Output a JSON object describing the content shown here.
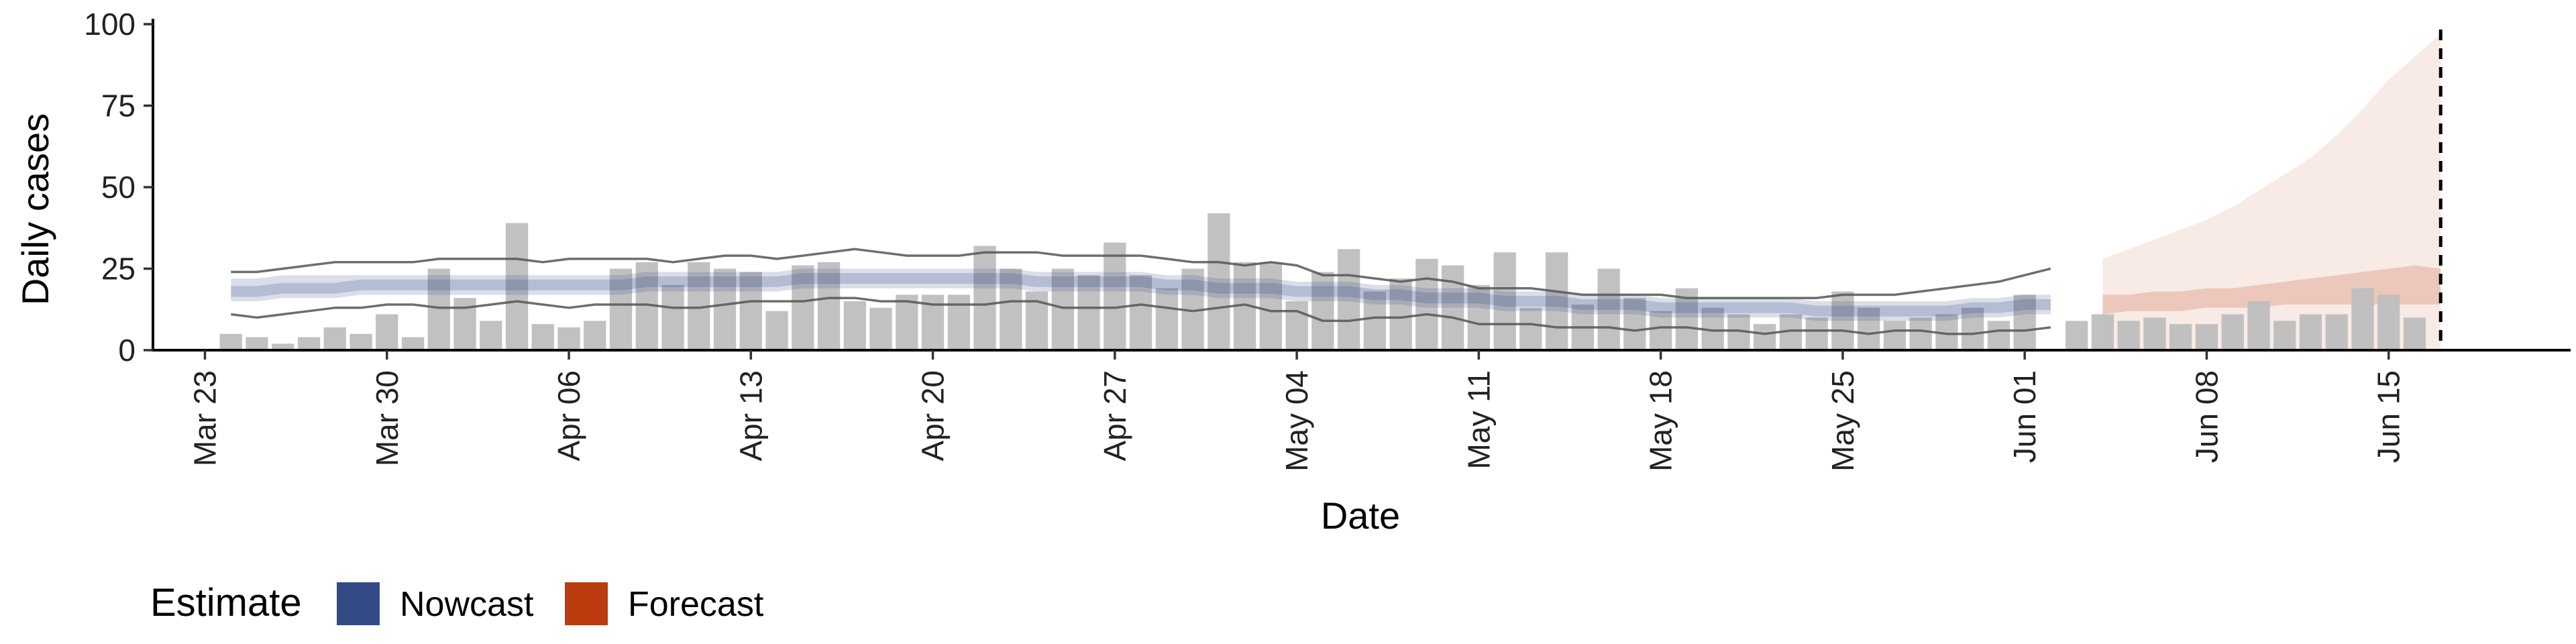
{
  "chart_data": {
    "type": "bar",
    "ylabel": "Daily cases",
    "xlabel": "Date",
    "ylim": [
      0,
      100
    ],
    "yticks": [
      0,
      25,
      50,
      75,
      100
    ],
    "xlim": [
      "2020-03-21",
      "2020-06-22"
    ],
    "xtick_dates": [
      "2020-03-23",
      "2020-03-30",
      "2020-04-06",
      "2020-04-13",
      "2020-04-20",
      "2020-04-27",
      "2020-05-04",
      "2020-05-11",
      "2020-05-18",
      "2020-05-25",
      "2020-06-01",
      "2020-06-08",
      "2020-06-15"
    ],
    "xtick_labels": [
      "Mar 23",
      "Mar 30",
      "Apr 06",
      "Apr 13",
      "Apr 20",
      "Apr 27",
      "May 04",
      "May 11",
      "May 18",
      "May 25",
      "Jun 01",
      "Jun 08",
      "Jun 15"
    ],
    "bars": {
      "start_date": "2020-03-24",
      "values": [
        5,
        4,
        2,
        4,
        7,
        5,
        11,
        4,
        25,
        16,
        9,
        39,
        8,
        7,
        9,
        25,
        27,
        20,
        27,
        25,
        24,
        12,
        26,
        27,
        15,
        13,
        17,
        17,
        17,
        32,
        25,
        18,
        25,
        23,
        33,
        23,
        19,
        25,
        42,
        27,
        27,
        15,
        24,
        31,
        18,
        22,
        28,
        26,
        20,
        30,
        13,
        30,
        14,
        25,
        16,
        12,
        19,
        13,
        11,
        8,
        11,
        10,
        18,
        13,
        9,
        10,
        11,
        13,
        9,
        17,
        0,
        9,
        11,
        9,
        10,
        8,
        8,
        11,
        15,
        9,
        11,
        11,
        19,
        17,
        10
      ],
      "color": "#bebebe"
    },
    "nowcast": {
      "start_date": "2020-03-24",
      "median": [
        18,
        18,
        19,
        19,
        19,
        20,
        20,
        20,
        20,
        20,
        20,
        20,
        20,
        20,
        20,
        20,
        21,
        21,
        21,
        21,
        21,
        21,
        22,
        22,
        22,
        22,
        22,
        22,
        22,
        22,
        22,
        21,
        21,
        21,
        21,
        21,
        20,
        20,
        19,
        19,
        19,
        18,
        18,
        18,
        17,
        17,
        16,
        16,
        16,
        15,
        15,
        15,
        14,
        14,
        14,
        13,
        13,
        13,
        13,
        13,
        13,
        12,
        12,
        12,
        12,
        12,
        12,
        13,
        13,
        14,
        14
      ],
      "inner_lower": [
        15,
        15,
        16,
        16,
        16,
        17,
        17,
        17,
        17,
        17,
        17,
        17,
        17,
        17,
        17,
        17,
        18,
        18,
        18,
        18,
        18,
        18,
        19,
        19,
        19,
        19,
        19,
        19,
        19,
        19,
        19,
        18,
        18,
        18,
        18,
        18,
        17,
        17,
        16,
        16,
        16,
        15,
        15,
        15,
        14,
        14,
        13,
        13,
        13,
        12,
        12,
        12,
        11,
        11,
        11,
        10,
        10,
        10,
        10,
        10,
        10,
        9,
        9,
        9,
        9,
        9,
        9,
        10,
        10,
        11,
        11
      ],
      "inner_upper": [
        22,
        22,
        23,
        23,
        23,
        23,
        23,
        23,
        23,
        23,
        23,
        23,
        23,
        23,
        23,
        23,
        24,
        24,
        24,
        24,
        24,
        24,
        25,
        25,
        25,
        25,
        25,
        25,
        25,
        25,
        25,
        24,
        24,
        24,
        24,
        24,
        23,
        23,
        22,
        22,
        22,
        21,
        21,
        21,
        20,
        20,
        19,
        19,
        19,
        18,
        18,
        18,
        17,
        17,
        17,
        16,
        16,
        16,
        16,
        16,
        16,
        15,
        15,
        15,
        15,
        15,
        15,
        16,
        16,
        17,
        17
      ],
      "outer_lower": [
        11,
        10,
        11,
        12,
        13,
        13,
        14,
        14,
        13,
        13,
        14,
        15,
        14,
        13,
        14,
        14,
        14,
        13,
        13,
        14,
        15,
        15,
        15,
        16,
        16,
        15,
        15,
        14,
        14,
        14,
        15,
        15,
        13,
        13,
        13,
        14,
        13,
        12,
        13,
        14,
        12,
        12,
        9,
        9,
        10,
        10,
        11,
        10,
        8,
        8,
        8,
        7,
        7,
        7,
        6,
        7,
        7,
        6,
        6,
        5,
        6,
        6,
        6,
        5,
        6,
        6,
        5,
        5,
        6,
        6,
        7
      ],
      "outer_upper": [
        24,
        24,
        25,
        26,
        27,
        27,
        27,
        27,
        28,
        28,
        28,
        28,
        27,
        28,
        28,
        28,
        28,
        27,
        28,
        29,
        29,
        28,
        29,
        30,
        31,
        30,
        29,
        29,
        29,
        30,
        30,
        30,
        29,
        29,
        29,
        29,
        28,
        27,
        27,
        26,
        27,
        26,
        23,
        23,
        22,
        21,
        22,
        21,
        19,
        19,
        19,
        18,
        17,
        17,
        17,
        17,
        16,
        16,
        16,
        16,
        16,
        16,
        17,
        17,
        17,
        18,
        19,
        20,
        21,
        23,
        25
      ],
      "color": "#344a86"
    },
    "forecast": {
      "start_date": "2020-06-04",
      "inner_lower": [
        11,
        12,
        12,
        12,
        13,
        13,
        13,
        14,
        14,
        14,
        14,
        14,
        14,
        14
      ],
      "inner_upper": [
        17,
        17,
        18,
        18,
        19,
        19,
        20,
        21,
        22,
        23,
        24,
        25,
        26,
        25
      ],
      "outer_lower": [
        0,
        0,
        0,
        0,
        0,
        0,
        0,
        0,
        0,
        0,
        0,
        0,
        0,
        0
      ],
      "outer_upper": [
        28,
        31,
        34,
        37,
        40,
        44,
        49,
        54,
        59,
        66,
        74,
        83,
        90,
        97
      ],
      "color": "#b93b0e"
    },
    "reference_line_date": "2020-06-17",
    "legend": {
      "title": "Estimate",
      "position": "bottom-left",
      "items": [
        {
          "label": "Nowcast",
          "color": "#344a86"
        },
        {
          "label": "Forecast",
          "color": "#b93b0e"
        }
      ]
    }
  }
}
